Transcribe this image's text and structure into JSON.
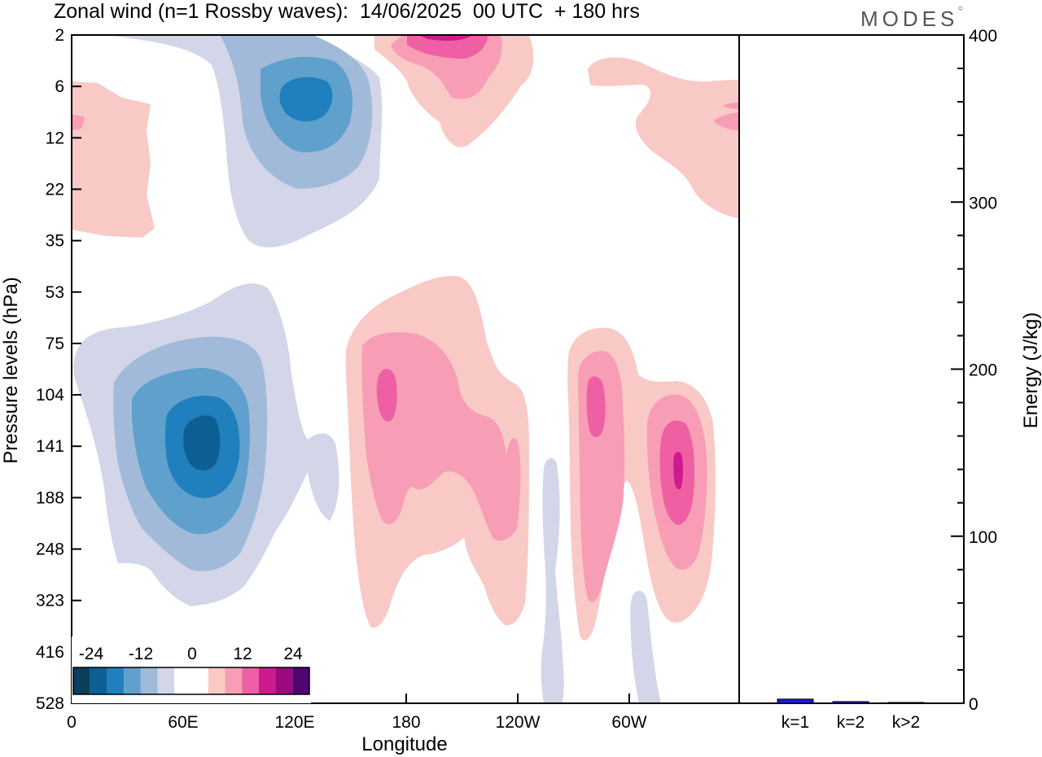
{
  "header": {
    "title": "Zonal wind (n=1 Rossby waves):  14/06/2025  00 UTC  + 180 hrs",
    "logo": "MODES",
    "logo_mark": "©"
  },
  "chart_data": [
    {
      "type": "contour",
      "xlabel": "Longitude",
      "ylabel": "Pressure levels (hPa)",
      "x_ticks": [
        "0",
        "60E",
        "120E",
        "180",
        "120W",
        "60W"
      ],
      "y_ticks": [
        "2",
        "6",
        "12",
        "22",
        "35",
        "53",
        "75",
        "104",
        "141",
        "188",
        "248",
        "323",
        "416",
        "528"
      ],
      "colorbar": {
        "labels": [
          "-24",
          "-12",
          "0",
          "12",
          "24"
        ],
        "colors": [
          "#0b3d5c",
          "#0d5f94",
          "#2080bd",
          "#60a0cc",
          "#a2bad9",
          "#d3d6e8",
          "#ffffff",
          "#ffffff",
          "#f9c9c6",
          "#f79db5",
          "#ef5fa3",
          "#ce1a8e",
          "#9d0a7d",
          "#500570"
        ]
      },
      "regions": [
        {
          "sign": "negative",
          "level": 1,
          "color": "#d3d6e8"
        },
        {
          "sign": "negative",
          "level": 2,
          "color": "#a2bad9"
        },
        {
          "sign": "negative",
          "level": 3,
          "color": "#60a0cc"
        },
        {
          "sign": "negative",
          "level": 4,
          "color": "#2080bd"
        },
        {
          "sign": "negative",
          "level": 5,
          "color": "#0d5f94"
        },
        {
          "sign": "positive",
          "level": 1,
          "color": "#f9c9c6"
        },
        {
          "sign": "positive",
          "level": 2,
          "color": "#f79db5"
        },
        {
          "sign": "positive",
          "level": 3,
          "color": "#ef5fa3"
        },
        {
          "sign": "positive",
          "level": 4,
          "color": "#ce1a8e"
        }
      ]
    },
    {
      "type": "bar",
      "ylabel": "Energy (J/kg)",
      "categories": [
        "k=1",
        "k=2",
        "k>2"
      ],
      "values": [
        2.5,
        1.0,
        0.5
      ],
      "ylim": [
        0,
        400
      ],
      "y_ticks": [
        "0",
        "100",
        "200",
        "300",
        "400"
      ],
      "bar_color": "#1a1ad6"
    }
  ]
}
